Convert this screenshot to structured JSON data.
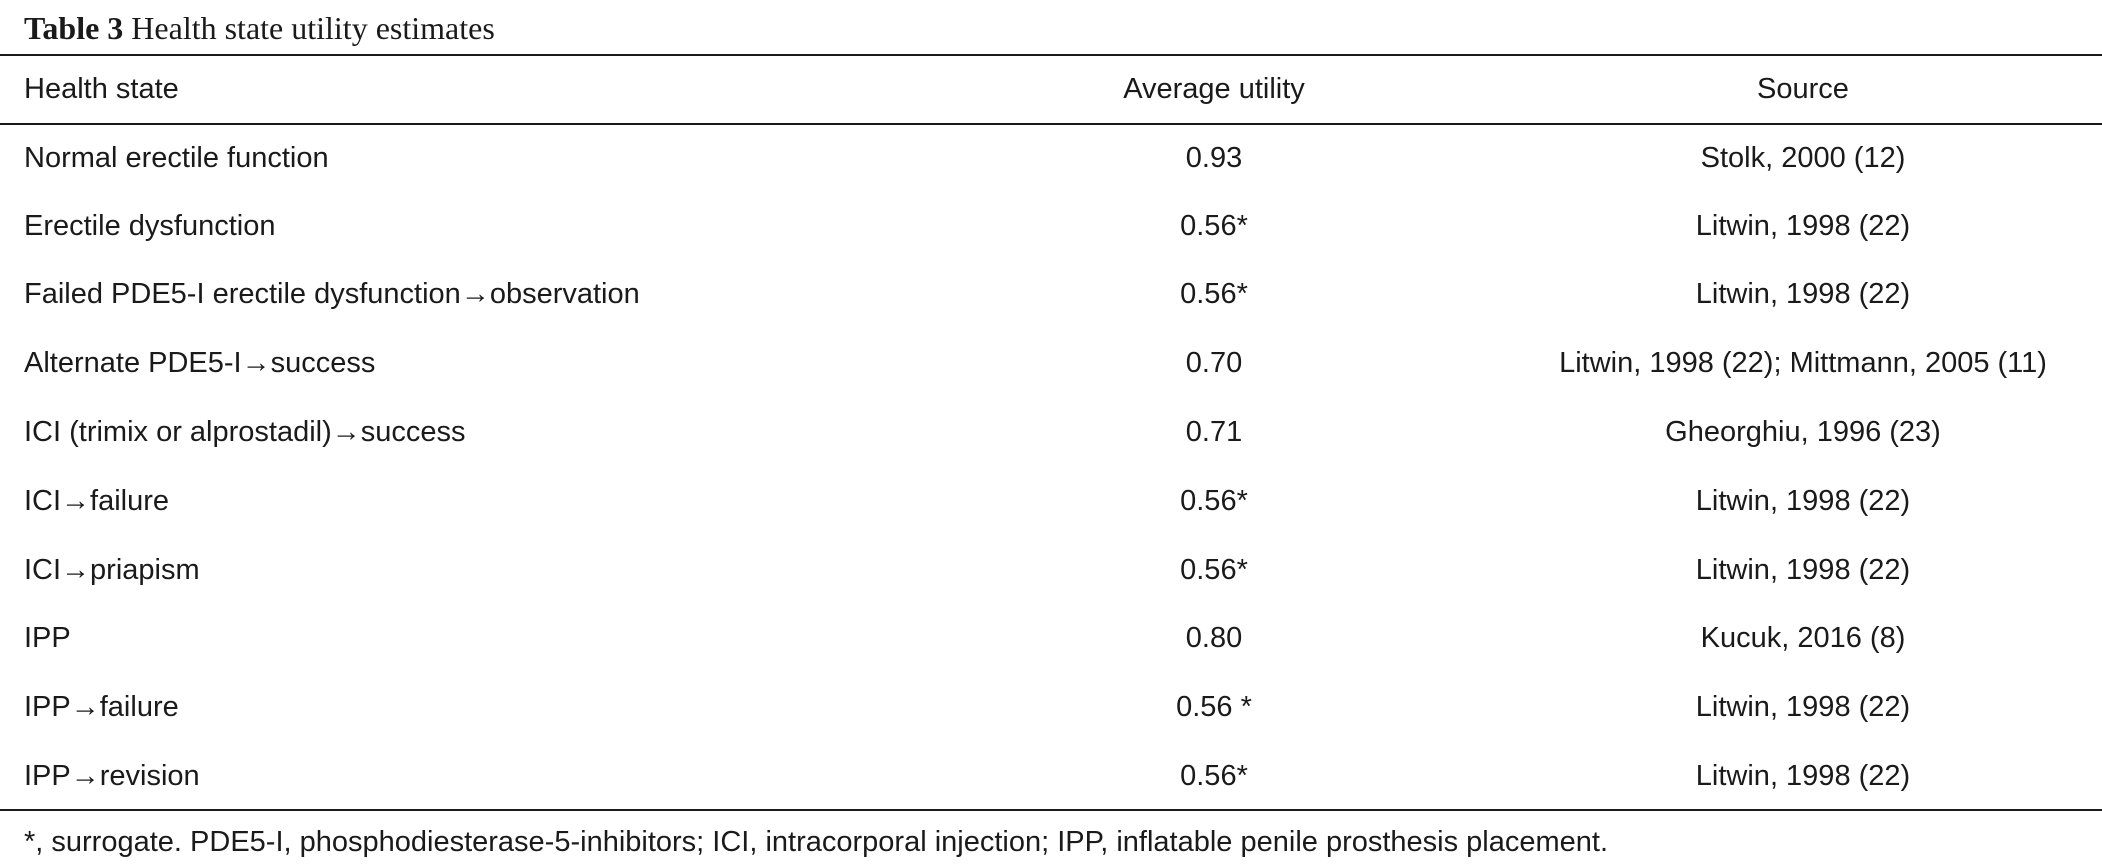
{
  "caption": {
    "label": "Table 3",
    "title": "Health state utility estimates"
  },
  "table": {
    "headers": [
      "Health state",
      "Average utility",
      "Source"
    ],
    "rows": [
      {
        "state": "Normal erectile function",
        "utility": "0.93",
        "source": "Stolk, 2000 (12)"
      },
      {
        "state": "Erectile dysfunction",
        "utility": "0.56*",
        "source": "Litwin, 1998 (22)"
      },
      {
        "state": "Failed PDE5-I erectile dysfunction→observation",
        "utility": "0.56*",
        "source": "Litwin, 1998 (22)"
      },
      {
        "state": "Alternate PDE5-I→success",
        "utility": "0.70",
        "source": "Litwin, 1998 (22); Mittmann, 2005 (11)"
      },
      {
        "state": "ICI (trimix or alprostadil)→success",
        "utility": "0.71",
        "source": "Gheorghiu, 1996 (23)"
      },
      {
        "state": "ICI→failure",
        "utility": "0.56*",
        "source": "Litwin, 1998 (22)"
      },
      {
        "state": "ICI→priapism",
        "utility": "0.56*",
        "source": "Litwin, 1998 (22)"
      },
      {
        "state": "IPP",
        "utility": "0.80",
        "source": "Kucuk, 2016 (8)"
      },
      {
        "state": "IPP→failure",
        "utility": "0.56 *",
        "source": "Litwin, 1998 (22)"
      },
      {
        "state": "IPP→revision",
        "utility": "0.56*",
        "source": "Litwin, 1998 (22)"
      }
    ]
  },
  "footnote": "*, surrogate. PDE5-I, phosphodiesterase-5-inhibitors; ICI, intracorporal injection; IPP, inflatable penile prosthesis placement."
}
